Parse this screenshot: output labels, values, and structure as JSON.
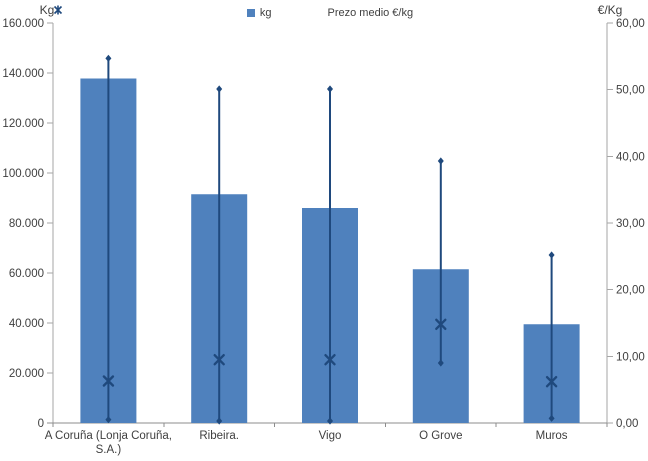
{
  "colors": {
    "bar": "#4f81bd",
    "price_line": "#1f497d",
    "axis_line": "#a6a6a6",
    "x_axis_line": "#8c8c8c",
    "text": "#3f3f3f",
    "background": "#ffffff"
  },
  "legend": {
    "items": [
      {
        "label": "kg",
        "marker": "square",
        "color": "#4f81bd"
      },
      {
        "label": "Prezo medio €/kg",
        "marker": "x-star",
        "color": "#1f497d"
      }
    ]
  },
  "chart_data": {
    "type": "bar",
    "title": "",
    "categories": [
      "A Coruña (Lonja Coruña, S.A.)",
      "Ribeira.",
      "Vigo",
      "O Grove",
      "Muros"
    ],
    "category_label_lines": [
      [
        "A Coruña (Lonja Coruña,",
        "S.A.)"
      ],
      [
        "Ribeira."
      ],
      [
        "Vigo"
      ],
      [
        "O Grove"
      ],
      [
        "Muros"
      ]
    ],
    "series": [
      {
        "name": "kg",
        "type": "column",
        "axis": "left",
        "color": "#4f81bd",
        "values": [
          137800,
          91500,
          86000,
          61500,
          39500
        ]
      },
      {
        "name": "Prezo medio €/kg",
        "type": "scatter-x-with-range-line",
        "axis": "right",
        "color": "#1f497d",
        "values": [
          6.3,
          9.5,
          9.5,
          14.8,
          6.2
        ],
        "range_high": [
          54.7,
          50.1,
          50.1,
          39.3,
          25.2
        ],
        "range_low": [
          0.5,
          0.3,
          0.3,
          9.0,
          0.7
        ]
      }
    ],
    "left_axis": {
      "title": "Kg",
      "min": 0,
      "max": 160000,
      "step": 20000,
      "tick_labels": [
        "0",
        "20.000",
        "40.000",
        "60.000",
        "80.000",
        "100.000",
        "120.000",
        "140.000",
        "160.000"
      ]
    },
    "right_axis": {
      "title": "€/Kg",
      "min": 0,
      "max": 60,
      "step": 10,
      "tick_labels": [
        "0,00",
        "10,00",
        "20,00",
        "30,00",
        "40,00",
        "50,00",
        "60,00"
      ]
    },
    "legend_position": "top-center",
    "grid": false
  }
}
